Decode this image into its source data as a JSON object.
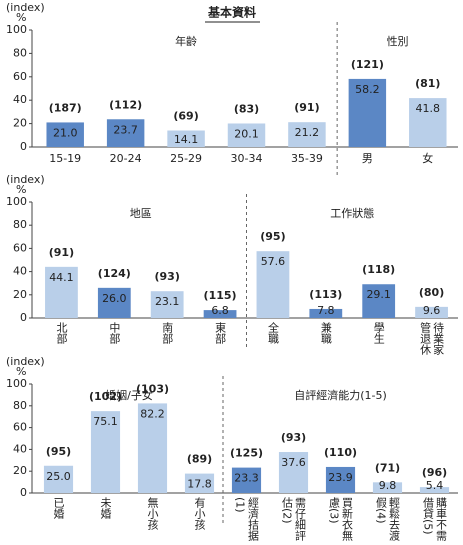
{
  "title": "基本資料",
  "chart_data": [
    {
      "type": "bar",
      "ylabel": "(index)",
      "yunit": "%",
      "ylim": [
        0,
        100
      ],
      "yticks": [
        0,
        20,
        40,
        60,
        80,
        100
      ],
      "groups": [
        {
          "name": "年齡",
          "categories": [
            "15-19",
            "20-24",
            "25-29",
            "30-34",
            "35-39"
          ],
          "values": [
            21,
            23.7,
            14.1,
            20.1,
            21.2
          ],
          "value_labels": [
            "21.0",
            "23.7",
            "14.1",
            "20.1",
            "21.2"
          ],
          "counts": [
            "(187)",
            "(112)",
            "(69)",
            "(83)",
            "(91)"
          ],
          "colors": [
            "#5b87c5",
            "#5b87c5",
            "#b9cfe9",
            "#b9cfe9",
            "#b9cfe9"
          ]
        },
        {
          "name": "性別",
          "categories": [
            "男",
            "女"
          ],
          "values": [
            58.2,
            41.8
          ],
          "value_labels": [
            "58.2",
            "41.8"
          ],
          "counts": [
            "(121)",
            "(81)"
          ],
          "colors": [
            "#5b87c5",
            "#b9cfe9"
          ]
        }
      ]
    },
    {
      "type": "bar",
      "ylabel": "(index)",
      "yunit": "%",
      "ylim": [
        0,
        100
      ],
      "yticks": [
        0,
        20,
        40,
        60,
        80,
        100
      ],
      "groups": [
        {
          "name": "地區",
          "categories": [
            "北部",
            "中部",
            "南部",
            "東部"
          ],
          "values": [
            44.1,
            26,
            23.1,
            6.8
          ],
          "value_labels": [
            "44.1",
            "26.0",
            "23.1",
            "6.8"
          ],
          "counts": [
            "(91)",
            "(124)",
            "(93)",
            "(115)"
          ],
          "colors": [
            "#b9cfe9",
            "#5b87c5",
            "#b9cfe9",
            "#5b87c5"
          ]
        },
        {
          "name": "工作狀態",
          "categories": [
            "全職",
            "兼職",
            "學生",
            "待業家管退休"
          ],
          "values": [
            57.6,
            7.8,
            29.1,
            9.6
          ],
          "value_labels": [
            "57.6",
            "7.8",
            "29.1",
            "9.6"
          ],
          "counts": [
            "(95)",
            "(113)",
            "(118)",
            "(80)"
          ],
          "colors": [
            "#b9cfe9",
            "#5b87c5",
            "#5b87c5",
            "#b9cfe9"
          ]
        }
      ]
    },
    {
      "type": "bar",
      "ylabel": "(index)",
      "yunit": "%",
      "ylim": [
        0,
        100
      ],
      "yticks": [
        0,
        20,
        40,
        60,
        80,
        100
      ],
      "groups": [
        {
          "name": "婚姻/子女",
          "categories": [
            "已婚",
            "未婚",
            "無小孩",
            "有小孩"
          ],
          "values": [
            25,
            75.1,
            82.2,
            17.8
          ],
          "value_labels": [
            "25.0",
            "75.1",
            "82.2",
            "17.8"
          ],
          "counts": [
            "(95)",
            "(102)",
            "(103)",
            "(89)"
          ],
          "colors": [
            "#b9cfe9",
            "#b9cfe9",
            "#b9cfe9",
            "#b9cfe9"
          ]
        },
        {
          "name": "自評經濟能力(1-5)",
          "categories": [
            "經濟拮据(1)",
            "需仔細評估(2)",
            "買新衣無慮(3)",
            "輕鬆去渡假(4)",
            "購車不需借貸(5)"
          ],
          "values": [
            23.3,
            37.6,
            23.9,
            9.8,
            5.4
          ],
          "value_labels": [
            "23.3",
            "37.6",
            "23.9",
            "9.8",
            "5.4"
          ],
          "counts": [
            "(125)",
            "(93)",
            "(110)",
            "(71)",
            "(96)"
          ],
          "colors": [
            "#5b87c5",
            "#b9cfe9",
            "#5b87c5",
            "#b9cfe9",
            "#b9cfe9"
          ]
        }
      ]
    }
  ]
}
